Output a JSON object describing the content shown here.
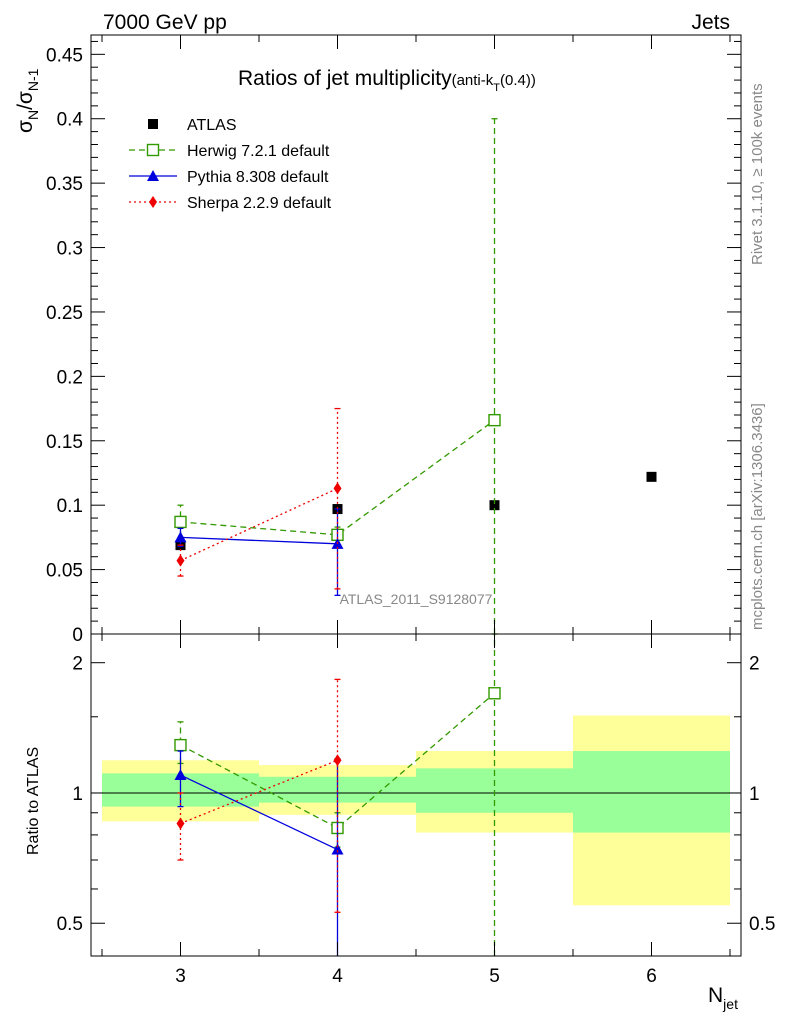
{
  "header": {
    "energy_label": "7000 GeV pp",
    "category_label": "Jets",
    "plot_title": "Ratios of jet multiplicity",
    "plot_title_sub": "(anti-k",
    "plot_title_sub_t": "T",
    "plot_title_sub_end": "(0.4))",
    "side_label_top": "Rivet 3.1.10, ≥ 100k events",
    "side_label_bottom": "mcplots.cern.ch [arXiv:1306.3436]",
    "analysis_id": "ATLAS_2011_S9128077"
  },
  "axes": {
    "main_ylabel_main": "σ",
    "main_ylabel_sub1": "N",
    "main_ylabel_slash": "/σ",
    "main_ylabel_sub2": "N-1",
    "ratio_ylabel": "Ratio to ATLAS",
    "xlabel_main": "N",
    "xlabel_sub": "jet"
  },
  "colors": {
    "atlas": "#000000",
    "herwig": "#339900",
    "pythia": "#0000dd",
    "sherpa": "#ee0000",
    "band_inner": "#99ff99",
    "band_outer": "#ffff99"
  },
  "chart_data": {
    "type": "scatter",
    "x": [
      3,
      4,
      5,
      6
    ],
    "xlim": [
      2.43,
      6.57
    ],
    "xticks": [
      3,
      4,
      5,
      6
    ],
    "main_ylim": [
      0,
      0.465
    ],
    "main_yticks": [
      {
        "v": 0,
        "label": "0"
      },
      {
        "v": 0.05,
        "label": "0.05"
      },
      {
        "v": 0.1,
        "label": "0.1"
      },
      {
        "v": 0.15,
        "label": "0.15"
      },
      {
        "v": 0.2,
        "label": "0.2"
      },
      {
        "v": 0.25,
        "label": "0.25"
      },
      {
        "v": 0.3,
        "label": "0.3"
      },
      {
        "v": 0.35,
        "label": "0.35"
      },
      {
        "v": 0.4,
        "label": "0.4"
      },
      {
        "v": 0.45,
        "label": "0.45"
      }
    ],
    "ratio_ylim": [
      0.42,
      2.33
    ],
    "ratio_yscale": "log",
    "ratio_yticks": [
      {
        "v": 0.5,
        "label": "0.5"
      },
      {
        "v": 1,
        "label": "1"
      },
      {
        "v": 2,
        "label": "2"
      }
    ],
    "series": [
      {
        "name": "ATLAS",
        "marker": "square-filled",
        "line": "none",
        "x": [
          3,
          4,
          5,
          6
        ],
        "y": [
          0.069,
          0.097,
          0.1,
          0.122
        ]
      },
      {
        "name": "Herwig 7.2.1 default",
        "marker": "square-open",
        "line": "dashed",
        "x": [
          3,
          4,
          5
        ],
        "y": [
          0.087,
          0.077,
          0.166
        ],
        "err": [
          [
            0.075,
            0.1
          ],
          [
            0.07,
            0.083
          ],
          [
            0,
            0.4
          ]
        ],
        "ratio": [
          1.29,
          0.83,
          1.7
        ],
        "ratio_err": [
          [
            1.17,
            1.46
          ],
          [
            0.75,
            0.9
          ],
          [
            0,
            3
          ]
        ]
      },
      {
        "name": "Pythia 8.308 default",
        "marker": "triangle-filled",
        "line": "solid",
        "x": [
          3,
          4
        ],
        "y": [
          0.075,
          0.07
        ],
        "err": [
          [
            0.068,
            0.082
          ],
          [
            0.03,
            0.097
          ]
        ],
        "ratio": [
          1.1,
          0.74
        ],
        "ratio_err": [
          [
            0.93,
            1.25
          ],
          [
            0.3,
            1.2
          ]
        ]
      },
      {
        "name": "Sherpa 2.2.9 default",
        "marker": "diamond-filled",
        "line": "dotted",
        "x": [
          3,
          4
        ],
        "y": [
          0.057,
          0.113
        ],
        "err": [
          [
            0.045,
            0.069
          ],
          [
            0.035,
            0.175
          ]
        ],
        "ratio": [
          0.85,
          1.19
        ],
        "ratio_err": [
          [
            0.7,
            1.0
          ],
          [
            0.53,
            1.83
          ]
        ]
      }
    ],
    "ratio_bands": [
      {
        "x0": 2.5,
        "x1": 3.5,
        "outer": [
          0.86,
          1.19
        ],
        "inner": [
          0.93,
          1.11
        ]
      },
      {
        "x0": 3.5,
        "x1": 4.5,
        "outer": [
          0.89,
          1.16
        ],
        "inner": [
          0.95,
          1.09
        ]
      },
      {
        "x0": 4.5,
        "x1": 5.5,
        "outer": [
          0.81,
          1.25
        ],
        "inner": [
          0.9,
          1.14
        ]
      },
      {
        "x0": 5.5,
        "x1": 6.5,
        "outer": [
          0.55,
          1.51
        ],
        "inner": [
          0.81,
          1.25
        ]
      }
    ],
    "legend_placement": "top-left"
  }
}
